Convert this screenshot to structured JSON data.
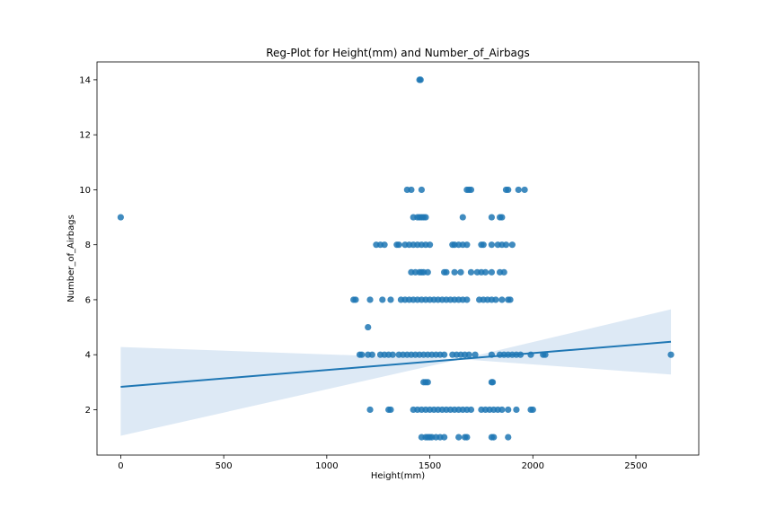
{
  "chart_data": {
    "type": "scatter",
    "title": "Reg-Plot for Height(mm) and Number_of_Airbags",
    "xlabel": "Height(mm)",
    "ylabel": "Number_of_Airbags",
    "xlim": [
      -115,
      2805
    ],
    "ylim": [
      0.35,
      14.65
    ],
    "xticks": [
      0,
      500,
      1000,
      1500,
      2000,
      2500
    ],
    "yticks": [
      2,
      4,
      6,
      8,
      10,
      12,
      14
    ],
    "grid": false,
    "point_color": "#1f77b4",
    "band_color": "#c6dbef",
    "points": [
      [
        0,
        9
      ],
      [
        1450,
        14
      ],
      [
        1455,
        14
      ],
      [
        1390,
        10
      ],
      [
        1410,
        10
      ],
      [
        1460,
        10
      ],
      [
        1680,
        10
      ],
      [
        1690,
        10
      ],
      [
        1700,
        10
      ],
      [
        1870,
        10
      ],
      [
        1880,
        10
      ],
      [
        1930,
        10
      ],
      [
        1960,
        10
      ],
      [
        1420,
        9
      ],
      [
        1440,
        9
      ],
      [
        1450,
        9
      ],
      [
        1460,
        9
      ],
      [
        1470,
        9
      ],
      [
        1480,
        9
      ],
      [
        1660,
        9
      ],
      [
        1800,
        9
      ],
      [
        1840,
        9
      ],
      [
        1850,
        9
      ],
      [
        1240,
        8
      ],
      [
        1260,
        8
      ],
      [
        1280,
        8
      ],
      [
        1340,
        8
      ],
      [
        1350,
        8
      ],
      [
        1380,
        8
      ],
      [
        1400,
        8
      ],
      [
        1420,
        8
      ],
      [
        1440,
        8
      ],
      [
        1460,
        8
      ],
      [
        1480,
        8
      ],
      [
        1500,
        8
      ],
      [
        1610,
        8
      ],
      [
        1620,
        8
      ],
      [
        1640,
        8
      ],
      [
        1660,
        8
      ],
      [
        1680,
        8
      ],
      [
        1750,
        8
      ],
      [
        1760,
        8
      ],
      [
        1800,
        8
      ],
      [
        1830,
        8
      ],
      [
        1850,
        8
      ],
      [
        1870,
        8
      ],
      [
        1900,
        8
      ],
      [
        1410,
        7
      ],
      [
        1430,
        7
      ],
      [
        1450,
        7
      ],
      [
        1460,
        7
      ],
      [
        1470,
        7
      ],
      [
        1490,
        7
      ],
      [
        1570,
        7
      ],
      [
        1580,
        7
      ],
      [
        1620,
        7
      ],
      [
        1650,
        7
      ],
      [
        1700,
        7
      ],
      [
        1730,
        7
      ],
      [
        1750,
        7
      ],
      [
        1770,
        7
      ],
      [
        1800,
        7
      ],
      [
        1840,
        7
      ],
      [
        1860,
        7
      ],
      [
        1130,
        6
      ],
      [
        1140,
        6
      ],
      [
        1210,
        6
      ],
      [
        1270,
        6
      ],
      [
        1310,
        6
      ],
      [
        1360,
        6
      ],
      [
        1380,
        6
      ],
      [
        1400,
        6
      ],
      [
        1420,
        6
      ],
      [
        1440,
        6
      ],
      [
        1460,
        6
      ],
      [
        1480,
        6
      ],
      [
        1500,
        6
      ],
      [
        1520,
        6
      ],
      [
        1540,
        6
      ],
      [
        1560,
        6
      ],
      [
        1580,
        6
      ],
      [
        1600,
        6
      ],
      [
        1620,
        6
      ],
      [
        1640,
        6
      ],
      [
        1660,
        6
      ],
      [
        1680,
        6
      ],
      [
        1740,
        6
      ],
      [
        1760,
        6
      ],
      [
        1780,
        6
      ],
      [
        1800,
        6
      ],
      [
        1820,
        6
      ],
      [
        1850,
        6
      ],
      [
        1880,
        6
      ],
      [
        1890,
        6
      ],
      [
        1200,
        5
      ],
      [
        1160,
        4
      ],
      [
        1170,
        4
      ],
      [
        1200,
        4
      ],
      [
        1220,
        4
      ],
      [
        1260,
        4
      ],
      [
        1280,
        4
      ],
      [
        1300,
        4
      ],
      [
        1320,
        4
      ],
      [
        1350,
        4
      ],
      [
        1370,
        4
      ],
      [
        1390,
        4
      ],
      [
        1410,
        4
      ],
      [
        1430,
        4
      ],
      [
        1450,
        4
      ],
      [
        1470,
        4
      ],
      [
        1490,
        4
      ],
      [
        1510,
        4
      ],
      [
        1530,
        4
      ],
      [
        1550,
        4
      ],
      [
        1570,
        4
      ],
      [
        1610,
        4
      ],
      [
        1630,
        4
      ],
      [
        1650,
        4
      ],
      [
        1670,
        4
      ],
      [
        1690,
        4
      ],
      [
        1720,
        4
      ],
      [
        1800,
        4
      ],
      [
        1840,
        4
      ],
      [
        1860,
        4
      ],
      [
        1880,
        4
      ],
      [
        1900,
        4
      ],
      [
        1920,
        4
      ],
      [
        1940,
        4
      ],
      [
        1990,
        4
      ],
      [
        2050,
        4
      ],
      [
        2060,
        4
      ],
      [
        2670,
        4
      ],
      [
        1470,
        3
      ],
      [
        1480,
        3
      ],
      [
        1490,
        3
      ],
      [
        1800,
        3
      ],
      [
        1805,
        3
      ],
      [
        1210,
        2
      ],
      [
        1300,
        2
      ],
      [
        1310,
        2
      ],
      [
        1420,
        2
      ],
      [
        1440,
        2
      ],
      [
        1460,
        2
      ],
      [
        1480,
        2
      ],
      [
        1500,
        2
      ],
      [
        1520,
        2
      ],
      [
        1540,
        2
      ],
      [
        1560,
        2
      ],
      [
        1580,
        2
      ],
      [
        1600,
        2
      ],
      [
        1620,
        2
      ],
      [
        1640,
        2
      ],
      [
        1660,
        2
      ],
      [
        1680,
        2
      ],
      [
        1700,
        2
      ],
      [
        1750,
        2
      ],
      [
        1770,
        2
      ],
      [
        1790,
        2
      ],
      [
        1810,
        2
      ],
      [
        1830,
        2
      ],
      [
        1850,
        2
      ],
      [
        1880,
        2
      ],
      [
        1920,
        2
      ],
      [
        1990,
        2
      ],
      [
        2000,
        2
      ],
      [
        1460,
        1
      ],
      [
        1480,
        1
      ],
      [
        1490,
        1
      ],
      [
        1500,
        1
      ],
      [
        1510,
        1
      ],
      [
        1530,
        1
      ],
      [
        1550,
        1
      ],
      [
        1570,
        1
      ],
      [
        1640,
        1
      ],
      [
        1670,
        1
      ],
      [
        1680,
        1
      ],
      [
        1800,
        1
      ],
      [
        1810,
        1
      ],
      [
        1880,
        1
      ]
    ],
    "regression": {
      "x": [
        0,
        2670
      ],
      "y": [
        2.83,
        4.47
      ],
      "ci_upper": [
        4.28,
        5.65
      ],
      "ci_lower": [
        1.05,
        3.28
      ],
      "ci_mid": {
        "x": 1650,
        "y": 3.84
      }
    }
  }
}
